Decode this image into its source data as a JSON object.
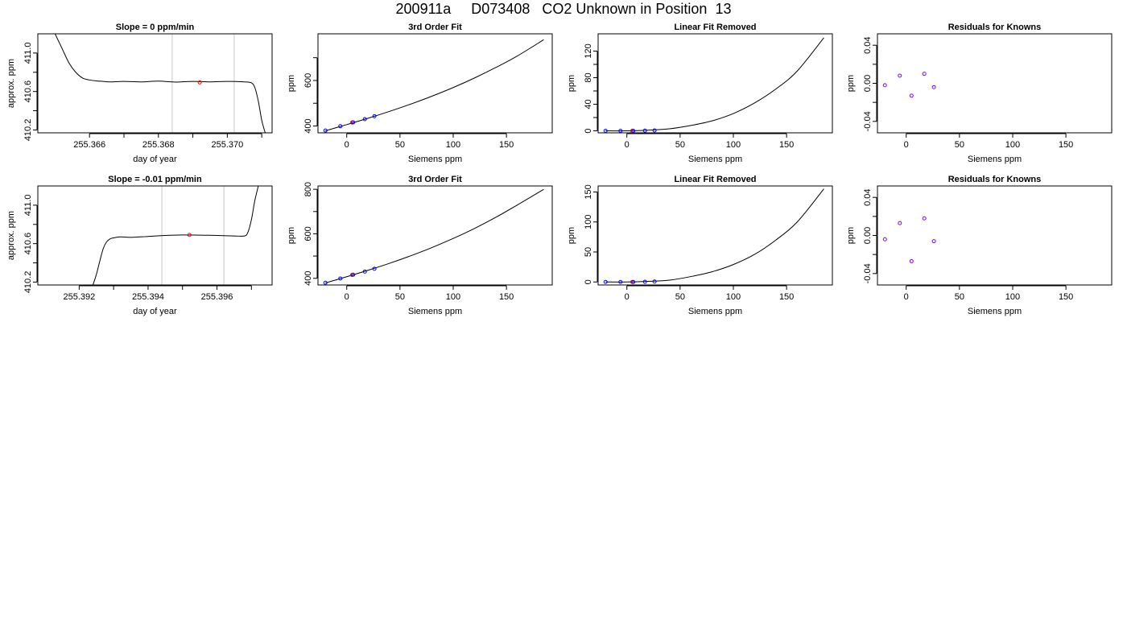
{
  "figure_title": "200911a     D073408   CO2 Unknown in Position  13",
  "chart_data": [
    {
      "type": "line",
      "title": "Slope =  0  ppm/min",
      "xlabel": "day of year",
      "ylabel": "approx. ppm",
      "xlim": [
        255.3645,
        255.3713
      ],
      "ylim": [
        410.17,
        411.2
      ],
      "xticks": [
        255.366,
        255.367,
        255.368,
        255.369,
        255.37,
        255.371
      ],
      "xtick_labels": [
        "255.366",
        "",
        "255.368",
        "",
        "255.370",
        ""
      ],
      "yticks": [
        410.2,
        410.4,
        410.6,
        410.8,
        411.0
      ],
      "ytick_labels": [
        "410.2",
        "",
        "410.6",
        "",
        "411.0"
      ],
      "vlines": [
        255.3684,
        255.3702
      ],
      "vline_color": "#c8c8c8",
      "series": [
        {
          "x": [
            255.365,
            255.3652,
            255.3654,
            255.3656,
            255.3658,
            255.366,
            255.3662,
            255.3664,
            255.3666,
            255.367,
            255.3675,
            255.368,
            255.3685,
            255.369,
            255.3695,
            255.37,
            255.3705,
            255.3707,
            255.3708,
            255.3709,
            255.371,
            255.3711
          ],
          "y": [
            411.2,
            411.05,
            410.9,
            410.8,
            410.74,
            410.72,
            410.71,
            410.705,
            410.7,
            410.705,
            410.7,
            410.708,
            410.698,
            410.705,
            410.7,
            410.705,
            410.7,
            410.69,
            410.64,
            410.5,
            410.3,
            410.17
          ],
          "color": "#000000"
        }
      ],
      "points": [
        {
          "x": 255.3692,
          "y": 410.695,
          "color": "#ff0000"
        }
      ]
    },
    {
      "type": "line",
      "title": "3rd Order Fit",
      "xlabel": "Siemens ppm",
      "ylabel": "ppm",
      "xlim": [
        -27,
        193
      ],
      "ylim": [
        370,
        805
      ],
      "xticks": [
        0,
        50,
        100,
        150
      ],
      "xtick_labels": [
        "0",
        "50",
        "100",
        "150"
      ],
      "yticks": [
        400,
        500,
        600,
        700
      ],
      "ytick_labels": [
        "400",
        "",
        "600",
        ""
      ],
      "series": [
        {
          "x": [
            -20,
            0,
            20,
            40,
            60,
            80,
            100,
            120,
            140,
            160,
            185
          ],
          "y": [
            379,
            406,
            434,
            464,
            496,
            531,
            569,
            611,
            657,
            707,
            779
          ],
          "color": "#000000"
        }
      ],
      "points": [
        {
          "x": -20,
          "y": 380,
          "color": "#0000ff"
        },
        {
          "x": -6,
          "y": 399,
          "color": "#0000ff"
        },
        {
          "x": 5,
          "y": 415,
          "color": "#ff0000"
        },
        {
          "x": 6,
          "y": 416,
          "color": "#0000ff"
        },
        {
          "x": 17,
          "y": 430,
          "color": "#0000ff"
        },
        {
          "x": 26,
          "y": 443,
          "color": "#0000ff"
        }
      ]
    },
    {
      "type": "line",
      "title": "Linear Fit Removed",
      "xlabel": "Siemens ppm",
      "ylabel": "ppm",
      "xlim": [
        -27,
        193
      ],
      "ylim": [
        -3,
        146
      ],
      "xticks": [
        0,
        50,
        100,
        150
      ],
      "xtick_labels": [
        "0",
        "50",
        "100",
        "150"
      ],
      "yticks": [
        0,
        20,
        40,
        60,
        80,
        100,
        120
      ],
      "ytick_labels": [
        "0",
        "",
        "40",
        "",
        "80",
        "",
        "120"
      ],
      "series": [
        {
          "x": [
            -20,
            0,
            20,
            40,
            60,
            80,
            100,
            120,
            140,
            160,
            185
          ],
          "y": [
            0,
            0,
            1,
            3,
            8,
            15,
            26,
            42,
            63,
            90,
            140
          ],
          "color": "#000000"
        }
      ],
      "points": [
        {
          "x": -20,
          "y": 0,
          "color": "#0000ff"
        },
        {
          "x": -6,
          "y": 0,
          "color": "#0000ff"
        },
        {
          "x": 5,
          "y": 0,
          "color": "#ff0000"
        },
        {
          "x": 6,
          "y": 0,
          "color": "#0000ff"
        },
        {
          "x": 17,
          "y": 0.3,
          "color": "#0000ff"
        },
        {
          "x": 26,
          "y": 0.6,
          "color": "#0000ff"
        }
      ]
    },
    {
      "type": "scatter",
      "title": "Residuals for Knowns",
      "xlabel": "Siemens ppm",
      "ylabel": "ppm",
      "xlim": [
        -27,
        193
      ],
      "ylim": [
        -0.052,
        0.052
      ],
      "xticks": [
        0,
        50,
        100,
        150
      ],
      "xtick_labels": [
        "0",
        "50",
        "100",
        "150"
      ],
      "yticks": [
        -0.04,
        -0.02,
        0.0,
        0.02,
        0.04
      ],
      "ytick_labels": [
        "-0.04",
        "",
        "0.00",
        "",
        "0.04"
      ],
      "series": [],
      "points": [
        {
          "x": -20,
          "y": -0.002,
          "color": "#8000ff"
        },
        {
          "x": -6,
          "y": 0.008,
          "color": "#8000ff"
        },
        {
          "x": 5,
          "y": -0.013,
          "color": "#8000ff"
        },
        {
          "x": 17,
          "y": 0.01,
          "color": "#8000ff"
        },
        {
          "x": 26,
          "y": -0.004,
          "color": "#8000ff"
        }
      ]
    },
    {
      "type": "line",
      "title": "Slope =  -0.01  ppm/min",
      "xlabel": "day of year",
      "ylabel": "approx. ppm",
      "xlim": [
        255.3908,
        255.3976
      ],
      "ylim": [
        410.17,
        411.2
      ],
      "xticks": [
        255.392,
        255.393,
        255.394,
        255.395,
        255.396,
        255.397
      ],
      "xtick_labels": [
        "255.392",
        "",
        "255.394",
        "",
        "255.396",
        ""
      ],
      "yticks": [
        410.2,
        410.4,
        410.6,
        410.8,
        411.0
      ],
      "ytick_labels": [
        "410.2",
        "",
        "410.6",
        "",
        "411.0"
      ],
      "vlines": [
        255.3944,
        255.3962
      ],
      "vline_color": "#c8c8c8",
      "series": [
        {
          "x": [
            255.3924,
            255.3925,
            255.3926,
            255.3927,
            255.3928,
            255.3929,
            255.393,
            255.3932,
            255.3935,
            255.394,
            255.3945,
            255.395,
            255.3955,
            255.396,
            255.3965,
            255.3968,
            255.3969,
            255.397,
            255.3971,
            255.3972
          ],
          "y": [
            410.17,
            410.28,
            410.42,
            410.55,
            410.62,
            410.65,
            410.66,
            410.67,
            410.665,
            410.675,
            410.685,
            410.69,
            410.688,
            410.685,
            410.68,
            410.68,
            410.72,
            410.85,
            411.05,
            411.2
          ],
          "color": "#000000"
        }
      ],
      "points": [
        {
          "x": 255.3952,
          "y": 410.69,
          "color": "#ff0000"
        }
      ]
    },
    {
      "type": "line",
      "title": "3rd Order Fit",
      "xlabel": "Siemens ppm",
      "ylabel": "ppm",
      "xlim": [
        -27,
        193
      ],
      "ylim": [
        370,
        815
      ],
      "xticks": [
        0,
        50,
        100,
        150
      ],
      "xtick_labels": [
        "0",
        "50",
        "100",
        "150"
      ],
      "yticks": [
        400,
        500,
        600,
        700,
        800
      ],
      "ytick_labels": [
        "400",
        "",
        "600",
        "",
        "800"
      ],
      "series": [
        {
          "x": [
            -20,
            0,
            20,
            40,
            60,
            80,
            100,
            120,
            140,
            160,
            185
          ],
          "y": [
            379,
            407,
            436,
            467,
            501,
            538,
            579,
            624,
            674,
            729,
            800
          ],
          "color": "#000000"
        }
      ],
      "points": [
        {
          "x": -20,
          "y": 380,
          "color": "#0000ff"
        },
        {
          "x": -6,
          "y": 399,
          "color": "#0000ff"
        },
        {
          "x": 5,
          "y": 415,
          "color": "#ff0000"
        },
        {
          "x": 6,
          "y": 416,
          "color": "#0000ff"
        },
        {
          "x": 17,
          "y": 430,
          "color": "#0000ff"
        },
        {
          "x": 26,
          "y": 443,
          "color": "#0000ff"
        }
      ]
    },
    {
      "type": "line",
      "title": "Linear Fit Removed",
      "xlabel": "Siemens ppm",
      "ylabel": "ppm",
      "xlim": [
        -27,
        193
      ],
      "ylim": [
        -5,
        160
      ],
      "xticks": [
        0,
        50,
        100,
        150
      ],
      "xtick_labels": [
        "0",
        "50",
        "100",
        "150"
      ],
      "yticks": [
        0,
        50,
        100,
        150
      ],
      "ytick_labels": [
        "0",
        "50",
        "100",
        "150"
      ],
      "series": [
        {
          "x": [
            -20,
            0,
            20,
            40,
            60,
            80,
            100,
            120,
            140,
            160,
            185
          ],
          "y": [
            0,
            0,
            1,
            3,
            9,
            17,
            29,
            46,
            70,
            100,
            155
          ],
          "color": "#000000"
        }
      ],
      "points": [
        {
          "x": -20,
          "y": 0,
          "color": "#0000ff"
        },
        {
          "x": -6,
          "y": 0,
          "color": "#0000ff"
        },
        {
          "x": 5,
          "y": 0,
          "color": "#ff0000"
        },
        {
          "x": 6,
          "y": 0,
          "color": "#0000ff"
        },
        {
          "x": 17,
          "y": 0.3,
          "color": "#0000ff"
        },
        {
          "x": 26,
          "y": 0.7,
          "color": "#0000ff"
        }
      ]
    },
    {
      "type": "scatter",
      "title": "Residuals for Knowns",
      "xlabel": "Siemens ppm",
      "ylabel": "ppm",
      "xlim": [
        -27,
        193
      ],
      "ylim": [
        -0.052,
        0.052
      ],
      "xticks": [
        0,
        50,
        100,
        150
      ],
      "xtick_labels": [
        "0",
        "50",
        "100",
        "150"
      ],
      "yticks": [
        -0.04,
        -0.02,
        0.0,
        0.02,
        0.04
      ],
      "ytick_labels": [
        "-0.04",
        "",
        "0.00",
        "",
        "0.04"
      ],
      "series": [],
      "points": [
        {
          "x": -20,
          "y": -0.004,
          "color": "#8000ff"
        },
        {
          "x": -6,
          "y": 0.013,
          "color": "#8000ff"
        },
        {
          "x": 5,
          "y": -0.027,
          "color": "#8000ff"
        },
        {
          "x": 17,
          "y": 0.018,
          "color": "#8000ff"
        },
        {
          "x": 26,
          "y": -0.006,
          "color": "#8000ff"
        }
      ]
    }
  ]
}
